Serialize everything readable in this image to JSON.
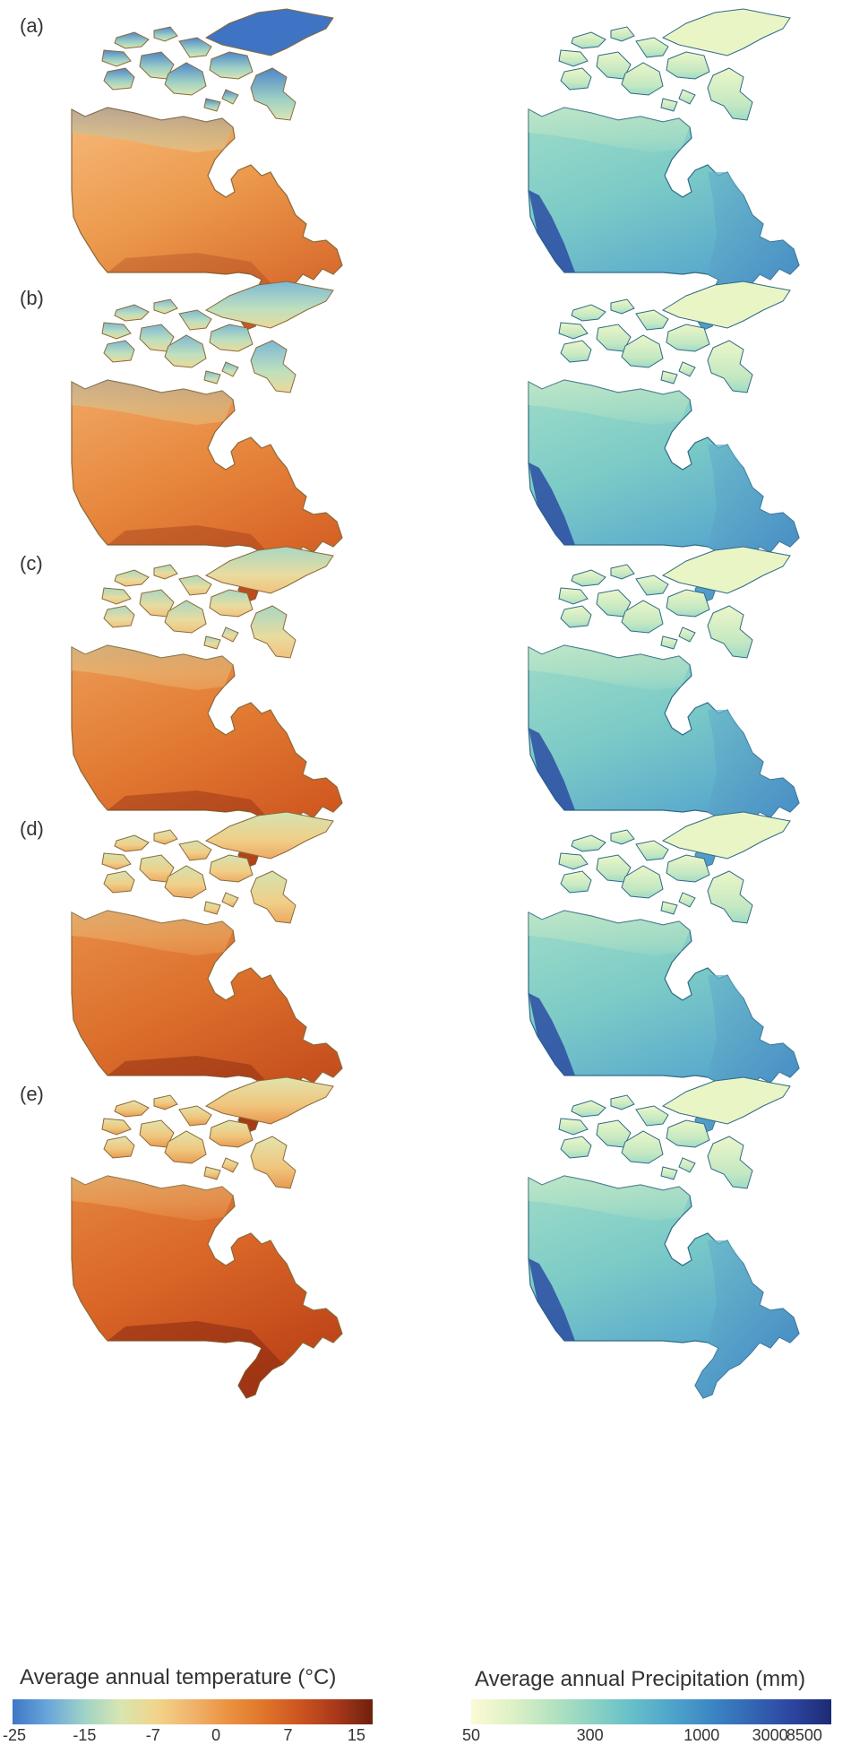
{
  "panels": [
    {
      "label": "(a)",
      "temp_level": 0
    },
    {
      "label": "(b)",
      "temp_level": 1
    },
    {
      "label": "(c)",
      "temp_level": 2
    },
    {
      "label": "(d)",
      "temp_level": 3
    },
    {
      "label": "(e)",
      "temp_level": 4
    }
  ],
  "legend": {
    "temperature": {
      "title": "Average annual temperature (°C)",
      "ticks": [
        "-25",
        "-15",
        "-7",
        "0",
        "7",
        "15"
      ],
      "colors": [
        "#3e78c7",
        "#6aa7d9",
        "#9fd3c8",
        "#d7e6b0",
        "#f1d48b",
        "#f1b36b",
        "#ea9240",
        "#e0742a",
        "#cb5420",
        "#a8381a",
        "#6e200f"
      ]
    },
    "precipitation": {
      "title": "Average annual Precipitation (mm)",
      "ticks": [
        "50",
        "300",
        "1000",
        "3000",
        "8500"
      ],
      "colors": [
        "#fbfbd5",
        "#dff1c6",
        "#b6e3c0",
        "#8dd3c2",
        "#67bfc8",
        "#4ea5cc",
        "#3c86c4",
        "#3466b4",
        "#2c46a0",
        "#1c2a72"
      ]
    }
  }
}
